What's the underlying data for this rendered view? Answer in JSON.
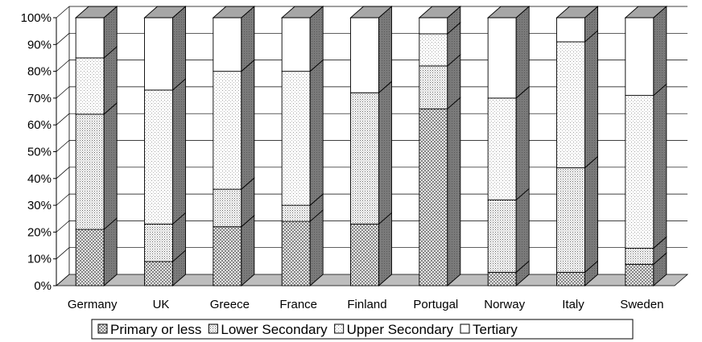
{
  "chart_data": {
    "type": "bar",
    "stacked": true,
    "percent": true,
    "three_d": true,
    "categories": [
      "Germany",
      "UK",
      "Greece",
      "France",
      "Finland",
      "Portugal",
      "Norway",
      "Italy",
      "Sweden"
    ],
    "series": [
      {
        "name": "Primary or less",
        "pattern": "crosshatch",
        "values": [
          21,
          9,
          22,
          24,
          23,
          66,
          5,
          5,
          8
        ]
      },
      {
        "name": "Lower Secondary",
        "pattern": "dense-dots",
        "values": [
          43,
          14,
          14,
          6,
          49,
          16,
          27,
          39,
          6
        ]
      },
      {
        "name": "Upper Secondary",
        "pattern": "light-dots",
        "values": [
          21,
          50,
          44,
          50,
          0,
          12,
          38,
          47,
          57
        ]
      },
      {
        "name": "Tertiary",
        "pattern": "white",
        "values": [
          15,
          27,
          20,
          20,
          28,
          6,
          30,
          9,
          29
        ]
      }
    ],
    "yaxis": {
      "ticks": [
        "0%",
        "10%",
        "20%",
        "30%",
        "40%",
        "50%",
        "60%",
        "70%",
        "80%",
        "90%",
        "100%"
      ],
      "ylim": [
        0,
        100
      ]
    },
    "grid": true,
    "legend_position": "bottom",
    "colors": {
      "floor": "#bdbdbd",
      "side": "#808080",
      "top": "#a6a6a6",
      "grid": "#000000"
    }
  }
}
